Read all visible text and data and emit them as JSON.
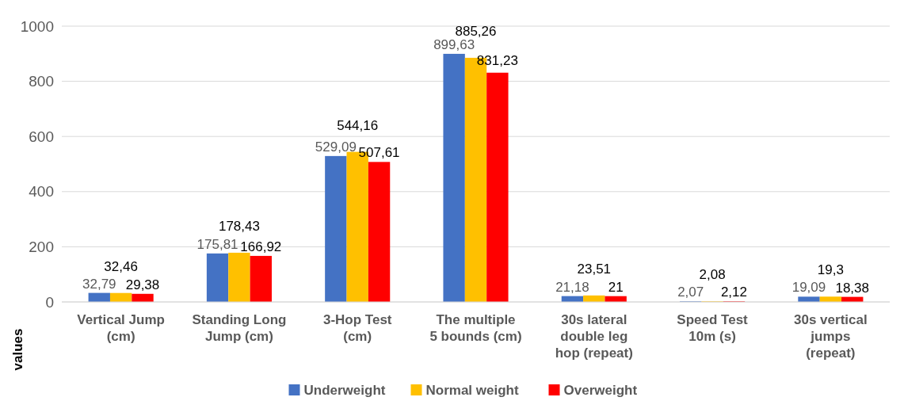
{
  "chart_data": {
    "type": "bar",
    "ylabel": "values",
    "categories": [
      "Vertical Jump (cm)",
      "Standing Long Jump  (cm)",
      "3-Hop Test (cm)",
      "The multiple 5 bounds (cm)",
      "30s lateral double leg hop (repeat)",
      "Speed Test 10m (s)",
      "30s vertical jumps (repeat)"
    ],
    "series": [
      {
        "name": "Underweight",
        "color": "#4472c4",
        "values": [
          32.79,
          175.81,
          529.09,
          899.63,
          21.18,
          2.07,
          19.09
        ],
        "value_labels": [
          "32,79",
          "175,81",
          "529,09",
          "899,63",
          "21,18",
          "2,07",
          "19,09"
        ]
      },
      {
        "name": "Normal weight",
        "color": "#ffc000",
        "values": [
          32.46,
          178.43,
          544.16,
          885.26,
          23.51,
          2.08,
          19.3
        ],
        "value_labels": [
          "32,46",
          "178,43",
          "544,16",
          "885,26",
          "23,51",
          "2,08",
          "19,3"
        ]
      },
      {
        "name": "Overweight",
        "color": "#ff0000",
        "values": [
          29.38,
          166.92,
          507.61,
          831.23,
          21,
          2.12,
          18.38
        ],
        "value_labels": [
          "29,38",
          "166,92",
          "507,61",
          "831,23",
          "21",
          "2,12",
          "18,38"
        ]
      }
    ],
    "ylim": [
      0,
      1000
    ],
    "yticks": [
      0,
      200,
      400,
      600,
      800,
      1000
    ],
    "grid": "y",
    "legend": "bottom"
  }
}
